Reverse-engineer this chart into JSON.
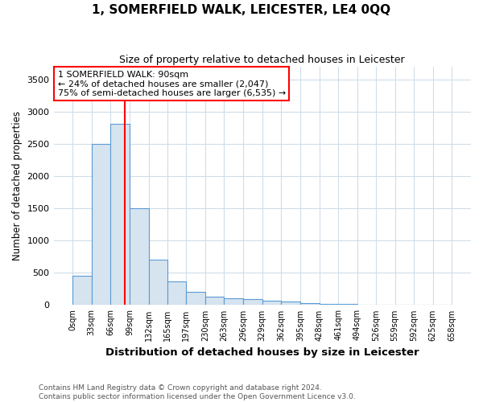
{
  "title": "1, SOMERFIELD WALK, LEICESTER, LE4 0QQ",
  "subtitle": "Size of property relative to detached houses in Leicester",
  "xlabel": "Distribution of detached houses by size in Leicester",
  "ylabel": "Number of detached properties",
  "footnote1": "Contains HM Land Registry data © Crown copyright and database right 2024.",
  "footnote2": "Contains public sector information licensed under the Open Government Licence v3.0.",
  "annotation_line1": "1 SOMERFIELD WALK: 90sqm",
  "annotation_line2": "← 24% of detached houses are smaller (2,047)",
  "annotation_line3": "75% of semi-detached houses are larger (6,535) →",
  "bar_color": "#d6e4f0",
  "bar_edge_color": "#5b9bd5",
  "redline_x": 90,
  "bin_edges": [
    0,
    33,
    66,
    99,
    132,
    165,
    197,
    230,
    263,
    296,
    329,
    362,
    395,
    428,
    461,
    494,
    526,
    559,
    592,
    625,
    658
  ],
  "bar_heights": [
    450,
    2500,
    2820,
    1500,
    700,
    370,
    200,
    130,
    100,
    90,
    70,
    50,
    35,
    20,
    15,
    10,
    8,
    5,
    3,
    2
  ],
  "ylim": [
    0,
    3700
  ],
  "yticks": [
    0,
    500,
    1000,
    1500,
    2000,
    2500,
    3000,
    3500
  ],
  "background_color": "#ffffff",
  "grid_color": "#d0dde8",
  "footnote_color": "#555555"
}
